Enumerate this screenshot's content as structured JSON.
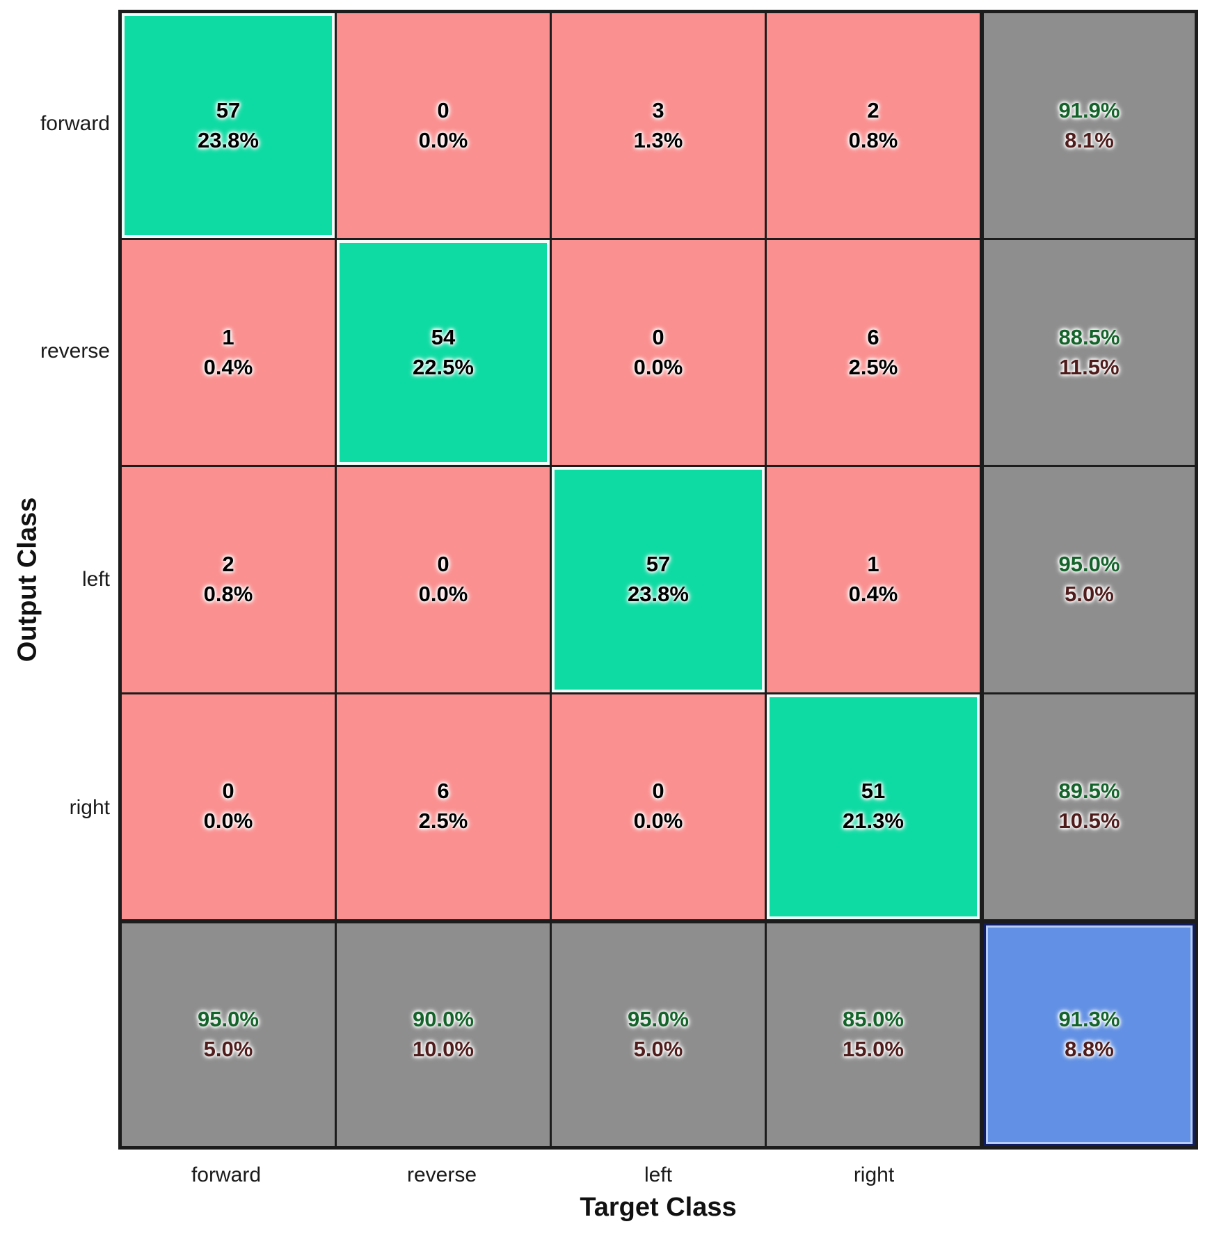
{
  "chart_data": {
    "type": "heatmap",
    "subtype": "confusion-matrix",
    "xlabel": "Target Class",
    "ylabel": "Output Class",
    "classes": [
      "forward",
      "reverse",
      "left",
      "right"
    ],
    "counts": [
      [
        57,
        0,
        3,
        2
      ],
      [
        1,
        54,
        0,
        6
      ],
      [
        2,
        0,
        57,
        1
      ],
      [
        0,
        6,
        0,
        51
      ]
    ],
    "cell_percents": [
      [
        "23.8%",
        "0.0%",
        "1.3%",
        "0.8%"
      ],
      [
        "0.4%",
        "22.5%",
        "0.0%",
        "2.5%"
      ],
      [
        "0.8%",
        "0.0%",
        "23.8%",
        "0.4%"
      ],
      [
        "0.0%",
        "2.5%",
        "0.0%",
        "21.3%"
      ]
    ],
    "row_summary": [
      {
        "good": "91.9%",
        "bad": "8.1%"
      },
      {
        "good": "88.5%",
        "bad": "11.5%"
      },
      {
        "good": "95.0%",
        "bad": "5.0%"
      },
      {
        "good": "89.5%",
        "bad": "10.5%"
      }
    ],
    "col_summary": [
      {
        "good": "95.0%",
        "bad": "5.0%"
      },
      {
        "good": "90.0%",
        "bad": "10.0%"
      },
      {
        "good": "95.0%",
        "bad": "5.0%"
      },
      {
        "good": "85.0%",
        "bad": "15.0%"
      }
    ],
    "overall": {
      "good": "91.3%",
      "bad": "8.8%"
    },
    "legend_position": "none",
    "grid_lines": "on"
  },
  "colors": {
    "diagonal_bg": "#0edba3",
    "off_diagonal_bg": "#fa9090",
    "summary_bg": "#8e8e8e",
    "total_bg": "#6190e4",
    "count_text": "#000000",
    "good_text": "#14632a",
    "bad_text": "#4f1c1c",
    "grid_line": "#1c1c1c"
  },
  "grid": {
    "rows": [
      {
        "cells": [
          {
            "name": "cell-forward-forward",
            "type": "diag",
            "line1": "57",
            "line2": "23.8%"
          },
          {
            "name": "cell-forward-reverse",
            "type": "off",
            "line1": "0",
            "line2": "0.0%"
          },
          {
            "name": "cell-forward-left",
            "type": "off",
            "line1": "3",
            "line2": "1.3%"
          },
          {
            "name": "cell-forward-right",
            "type": "off",
            "line1": "2",
            "line2": "0.8%"
          },
          {
            "name": "cell-row-summary-forward",
            "type": "sum",
            "line1": "91.9%",
            "line2": "8.1%"
          }
        ]
      },
      {
        "cells": [
          {
            "name": "cell-reverse-forward",
            "type": "off",
            "line1": "1",
            "line2": "0.4%"
          },
          {
            "name": "cell-reverse-reverse",
            "type": "diag",
            "line1": "54",
            "line2": "22.5%"
          },
          {
            "name": "cell-reverse-left",
            "type": "off",
            "line1": "0",
            "line2": "0.0%"
          },
          {
            "name": "cell-reverse-right",
            "type": "off",
            "line1": "6",
            "line2": "2.5%"
          },
          {
            "name": "cell-row-summary-reverse",
            "type": "sum",
            "line1": "88.5%",
            "line2": "11.5%"
          }
        ]
      },
      {
        "cells": [
          {
            "name": "cell-left-forward",
            "type": "off",
            "line1": "2",
            "line2": "0.8%"
          },
          {
            "name": "cell-left-reverse",
            "type": "off",
            "line1": "0",
            "line2": "0.0%"
          },
          {
            "name": "cell-left-left",
            "type": "diag",
            "line1": "57",
            "line2": "23.8%"
          },
          {
            "name": "cell-left-right",
            "type": "off",
            "line1": "1",
            "line2": "0.4%"
          },
          {
            "name": "cell-row-summary-left",
            "type": "sum",
            "line1": "95.0%",
            "line2": "5.0%"
          }
        ]
      },
      {
        "cells": [
          {
            "name": "cell-right-forward",
            "type": "off",
            "line1": "0",
            "line2": "0.0%"
          },
          {
            "name": "cell-right-reverse",
            "type": "off",
            "line1": "6",
            "line2": "2.5%"
          },
          {
            "name": "cell-right-left",
            "type": "off",
            "line1": "0",
            "line2": "0.0%"
          },
          {
            "name": "cell-right-right",
            "type": "diag",
            "line1": "51",
            "line2": "21.3%"
          },
          {
            "name": "cell-row-summary-right",
            "type": "sum",
            "line1": "89.5%",
            "line2": "10.5%"
          }
        ]
      },
      {
        "cells": [
          {
            "name": "cell-col-summary-forward",
            "type": "sum",
            "line1": "95.0%",
            "line2": "5.0%"
          },
          {
            "name": "cell-col-summary-reverse",
            "type": "sum",
            "line1": "90.0%",
            "line2": "10.0%"
          },
          {
            "name": "cell-col-summary-left",
            "type": "sum",
            "line1": "95.0%",
            "line2": "5.0%"
          },
          {
            "name": "cell-col-summary-right",
            "type": "sum",
            "line1": "85.0%",
            "line2": "15.0%"
          },
          {
            "name": "cell-overall-accuracy",
            "type": "total",
            "line1": "91.3%",
            "line2": "8.8%"
          }
        ]
      }
    ]
  },
  "row_label_tops": [
    161,
    488,
    816,
    1144
  ],
  "col_label_lefts": [
    170,
    480,
    791,
    1101
  ]
}
